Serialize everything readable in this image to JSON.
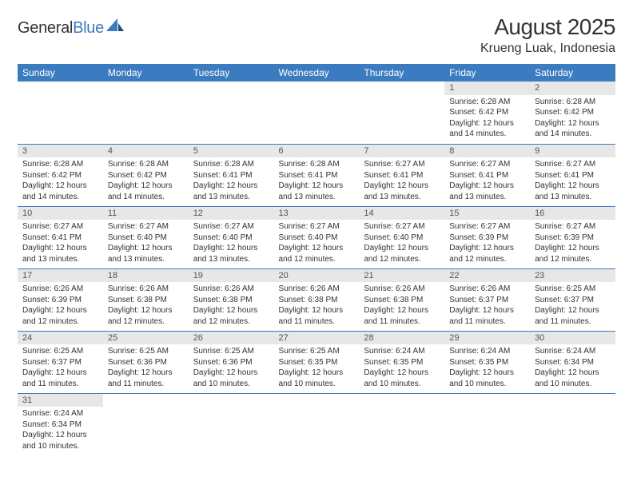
{
  "logo": {
    "text1": "General",
    "text2": "Blue"
  },
  "title": {
    "month": "August 2025",
    "location": "Krueng Luak, Indonesia"
  },
  "colors": {
    "header_bg": "#3b7bbf",
    "header_fg": "#ffffff",
    "daynum_bg": "#e7e7e7",
    "cell_border": "#3b7bbf",
    "text": "#333333"
  },
  "weekdays": [
    "Sunday",
    "Monday",
    "Tuesday",
    "Wednesday",
    "Thursday",
    "Friday",
    "Saturday"
  ],
  "weeks": [
    [
      null,
      null,
      null,
      null,
      null,
      {
        "n": "1",
        "sr": "Sunrise: 6:28 AM",
        "ss": "Sunset: 6:42 PM",
        "d1": "Daylight: 12 hours",
        "d2": "and 14 minutes."
      },
      {
        "n": "2",
        "sr": "Sunrise: 6:28 AM",
        "ss": "Sunset: 6:42 PM",
        "d1": "Daylight: 12 hours",
        "d2": "and 14 minutes."
      }
    ],
    [
      {
        "n": "3",
        "sr": "Sunrise: 6:28 AM",
        "ss": "Sunset: 6:42 PM",
        "d1": "Daylight: 12 hours",
        "d2": "and 14 minutes."
      },
      {
        "n": "4",
        "sr": "Sunrise: 6:28 AM",
        "ss": "Sunset: 6:42 PM",
        "d1": "Daylight: 12 hours",
        "d2": "and 14 minutes."
      },
      {
        "n": "5",
        "sr": "Sunrise: 6:28 AM",
        "ss": "Sunset: 6:41 PM",
        "d1": "Daylight: 12 hours",
        "d2": "and 13 minutes."
      },
      {
        "n": "6",
        "sr": "Sunrise: 6:28 AM",
        "ss": "Sunset: 6:41 PM",
        "d1": "Daylight: 12 hours",
        "d2": "and 13 minutes."
      },
      {
        "n": "7",
        "sr": "Sunrise: 6:27 AM",
        "ss": "Sunset: 6:41 PM",
        "d1": "Daylight: 12 hours",
        "d2": "and 13 minutes."
      },
      {
        "n": "8",
        "sr": "Sunrise: 6:27 AM",
        "ss": "Sunset: 6:41 PM",
        "d1": "Daylight: 12 hours",
        "d2": "and 13 minutes."
      },
      {
        "n": "9",
        "sr": "Sunrise: 6:27 AM",
        "ss": "Sunset: 6:41 PM",
        "d1": "Daylight: 12 hours",
        "d2": "and 13 minutes."
      }
    ],
    [
      {
        "n": "10",
        "sr": "Sunrise: 6:27 AM",
        "ss": "Sunset: 6:41 PM",
        "d1": "Daylight: 12 hours",
        "d2": "and 13 minutes."
      },
      {
        "n": "11",
        "sr": "Sunrise: 6:27 AM",
        "ss": "Sunset: 6:40 PM",
        "d1": "Daylight: 12 hours",
        "d2": "and 13 minutes."
      },
      {
        "n": "12",
        "sr": "Sunrise: 6:27 AM",
        "ss": "Sunset: 6:40 PM",
        "d1": "Daylight: 12 hours",
        "d2": "and 13 minutes."
      },
      {
        "n": "13",
        "sr": "Sunrise: 6:27 AM",
        "ss": "Sunset: 6:40 PM",
        "d1": "Daylight: 12 hours",
        "d2": "and 12 minutes."
      },
      {
        "n": "14",
        "sr": "Sunrise: 6:27 AM",
        "ss": "Sunset: 6:40 PM",
        "d1": "Daylight: 12 hours",
        "d2": "and 12 minutes."
      },
      {
        "n": "15",
        "sr": "Sunrise: 6:27 AM",
        "ss": "Sunset: 6:39 PM",
        "d1": "Daylight: 12 hours",
        "d2": "and 12 minutes."
      },
      {
        "n": "16",
        "sr": "Sunrise: 6:27 AM",
        "ss": "Sunset: 6:39 PM",
        "d1": "Daylight: 12 hours",
        "d2": "and 12 minutes."
      }
    ],
    [
      {
        "n": "17",
        "sr": "Sunrise: 6:26 AM",
        "ss": "Sunset: 6:39 PM",
        "d1": "Daylight: 12 hours",
        "d2": "and 12 minutes."
      },
      {
        "n": "18",
        "sr": "Sunrise: 6:26 AM",
        "ss": "Sunset: 6:38 PM",
        "d1": "Daylight: 12 hours",
        "d2": "and 12 minutes."
      },
      {
        "n": "19",
        "sr": "Sunrise: 6:26 AM",
        "ss": "Sunset: 6:38 PM",
        "d1": "Daylight: 12 hours",
        "d2": "and 12 minutes."
      },
      {
        "n": "20",
        "sr": "Sunrise: 6:26 AM",
        "ss": "Sunset: 6:38 PM",
        "d1": "Daylight: 12 hours",
        "d2": "and 11 minutes."
      },
      {
        "n": "21",
        "sr": "Sunrise: 6:26 AM",
        "ss": "Sunset: 6:38 PM",
        "d1": "Daylight: 12 hours",
        "d2": "and 11 minutes."
      },
      {
        "n": "22",
        "sr": "Sunrise: 6:26 AM",
        "ss": "Sunset: 6:37 PM",
        "d1": "Daylight: 12 hours",
        "d2": "and 11 minutes."
      },
      {
        "n": "23",
        "sr": "Sunrise: 6:25 AM",
        "ss": "Sunset: 6:37 PM",
        "d1": "Daylight: 12 hours",
        "d2": "and 11 minutes."
      }
    ],
    [
      {
        "n": "24",
        "sr": "Sunrise: 6:25 AM",
        "ss": "Sunset: 6:37 PM",
        "d1": "Daylight: 12 hours",
        "d2": "and 11 minutes."
      },
      {
        "n": "25",
        "sr": "Sunrise: 6:25 AM",
        "ss": "Sunset: 6:36 PM",
        "d1": "Daylight: 12 hours",
        "d2": "and 11 minutes."
      },
      {
        "n": "26",
        "sr": "Sunrise: 6:25 AM",
        "ss": "Sunset: 6:36 PM",
        "d1": "Daylight: 12 hours",
        "d2": "and 10 minutes."
      },
      {
        "n": "27",
        "sr": "Sunrise: 6:25 AM",
        "ss": "Sunset: 6:35 PM",
        "d1": "Daylight: 12 hours",
        "d2": "and 10 minutes."
      },
      {
        "n": "28",
        "sr": "Sunrise: 6:24 AM",
        "ss": "Sunset: 6:35 PM",
        "d1": "Daylight: 12 hours",
        "d2": "and 10 minutes."
      },
      {
        "n": "29",
        "sr": "Sunrise: 6:24 AM",
        "ss": "Sunset: 6:35 PM",
        "d1": "Daylight: 12 hours",
        "d2": "and 10 minutes."
      },
      {
        "n": "30",
        "sr": "Sunrise: 6:24 AM",
        "ss": "Sunset: 6:34 PM",
        "d1": "Daylight: 12 hours",
        "d2": "and 10 minutes."
      }
    ],
    [
      {
        "n": "31",
        "sr": "Sunrise: 6:24 AM",
        "ss": "Sunset: 6:34 PM",
        "d1": "Daylight: 12 hours",
        "d2": "and 10 minutes."
      },
      null,
      null,
      null,
      null,
      null,
      null
    ]
  ]
}
